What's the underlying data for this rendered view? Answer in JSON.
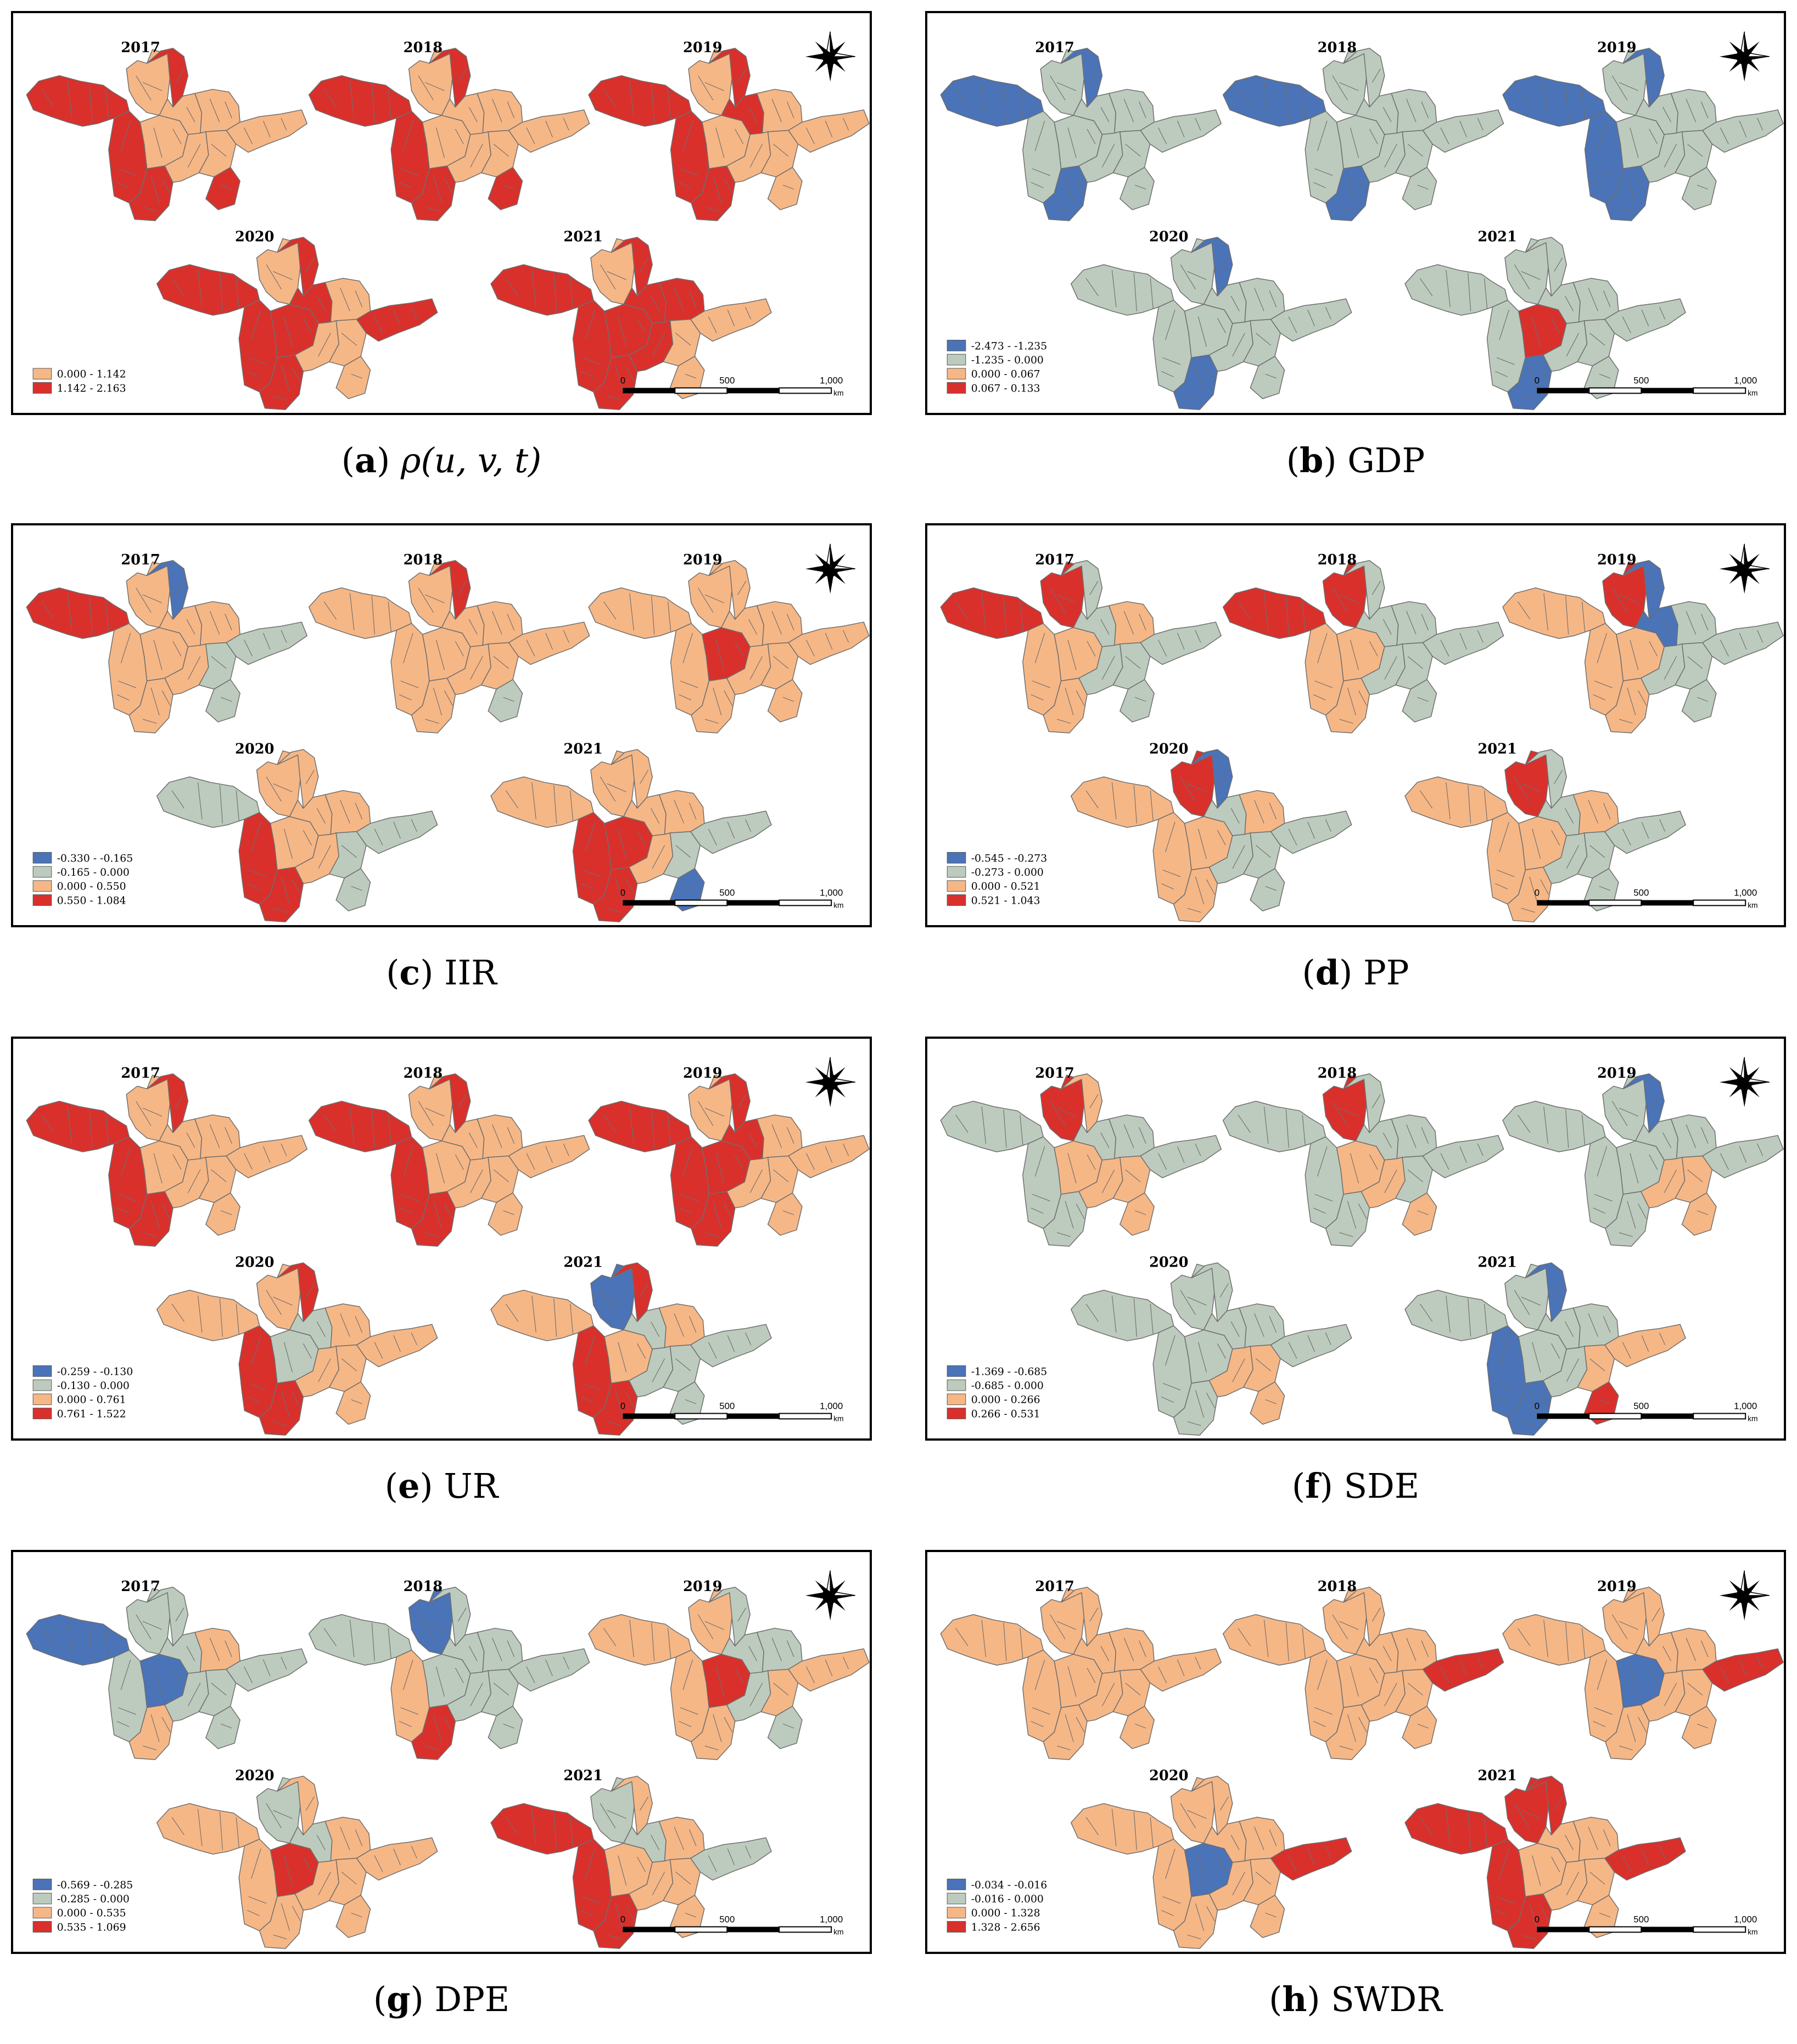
{
  "colors": {
    "blue": "#4a73b8",
    "grey": "#bccbbd",
    "orange": "#f6b786",
    "red": "#d9302c",
    "border": "#6e6e6e"
  },
  "scalebar": {
    "labels": [
      "0",
      "500",
      "1,000"
    ],
    "unit": "km"
  },
  "panels": [
    {
      "letter": "a",
      "label": "ρ(u, v, t)",
      "legend": [
        {
          "color": "orange",
          "text": "0.000 - 1.142"
        },
        {
          "color": "red",
          "text": "1.142 - 2.163"
        }
      ],
      "maps": [
        {
          "year": "2017",
          "regions": [
            "red",
            "orange",
            "red",
            "red",
            "orange",
            "orange",
            "orange",
            "red",
            "orange",
            "orange",
            "red",
            "orange"
          ]
        },
        {
          "year": "2018",
          "regions": [
            "red",
            "orange",
            "red",
            "red",
            "orange",
            "orange",
            "orange",
            "red",
            "orange",
            "orange",
            "red",
            "orange"
          ]
        },
        {
          "year": "2019",
          "regions": [
            "red",
            "orange",
            "red",
            "red",
            "orange",
            "red",
            "orange",
            "red",
            "orange",
            "orange",
            "orange",
            "orange"
          ]
        },
        {
          "year": "2020",
          "regions": [
            "red",
            "orange",
            "red",
            "red",
            "red",
            "red",
            "orange",
            "red",
            "orange",
            "orange",
            "orange",
            "red"
          ]
        },
        {
          "year": "2021",
          "regions": [
            "red",
            "orange",
            "red",
            "red",
            "red",
            "red",
            "red",
            "red",
            "red",
            "orange",
            "orange",
            "orange"
          ]
        }
      ]
    },
    {
      "letter": "b",
      "label": "GDP",
      "legend": [
        {
          "color": "blue",
          "text": "-2.473 - -1.235"
        },
        {
          "color": "grey",
          "text": "-1.235 - 0.000"
        },
        {
          "color": "orange",
          "text": "0.000 - 0.067"
        },
        {
          "color": "red",
          "text": "0.067 - 0.133"
        }
      ],
      "maps": [
        {
          "year": "2017",
          "regions": [
            "blue",
            "grey",
            "blue",
            "grey",
            "grey",
            "grey",
            "grey",
            "blue",
            "grey",
            "grey",
            "grey",
            "grey"
          ]
        },
        {
          "year": "2018",
          "regions": [
            "blue",
            "grey",
            "grey",
            "grey",
            "grey",
            "grey",
            "grey",
            "blue",
            "grey",
            "grey",
            "grey",
            "grey"
          ]
        },
        {
          "year": "2019",
          "regions": [
            "blue",
            "grey",
            "blue",
            "blue",
            "grey",
            "grey",
            "grey",
            "blue",
            "grey",
            "grey",
            "grey",
            "grey"
          ]
        },
        {
          "year": "2020",
          "regions": [
            "grey",
            "grey",
            "blue",
            "grey",
            "grey",
            "grey",
            "grey",
            "blue",
            "grey",
            "grey",
            "grey",
            "grey"
          ]
        },
        {
          "year": "2021",
          "regions": [
            "grey",
            "grey",
            "grey",
            "grey",
            "red",
            "grey",
            "grey",
            "blue",
            "grey",
            "grey",
            "grey",
            "grey"
          ]
        }
      ]
    },
    {
      "letter": "c",
      "label": "IIR",
      "legend": [
        {
          "color": "blue",
          "text": "-0.330 - -0.165"
        },
        {
          "color": "grey",
          "text": "-0.165 - 0.000"
        },
        {
          "color": "orange",
          "text": "0.000 - 0.550"
        },
        {
          "color": "red",
          "text": "0.550 - 1.084"
        }
      ],
      "maps": [
        {
          "year": "2017",
          "regions": [
            "red",
            "orange",
            "blue",
            "orange",
            "orange",
            "orange",
            "orange",
            "orange",
            "orange",
            "grey",
            "grey",
            "grey"
          ]
        },
        {
          "year": "2018",
          "regions": [
            "orange",
            "orange",
            "red",
            "orange",
            "orange",
            "orange",
            "orange",
            "orange",
            "orange",
            "orange",
            "grey",
            "orange"
          ]
        },
        {
          "year": "2019",
          "regions": [
            "orange",
            "orange",
            "orange",
            "orange",
            "red",
            "orange",
            "orange",
            "orange",
            "orange",
            "orange",
            "orange",
            "orange"
          ]
        },
        {
          "year": "2020",
          "regions": [
            "grey",
            "orange",
            "orange",
            "red",
            "orange",
            "orange",
            "orange",
            "red",
            "orange",
            "grey",
            "grey",
            "grey"
          ]
        },
        {
          "year": "2021",
          "regions": [
            "orange",
            "orange",
            "orange",
            "red",
            "red",
            "orange",
            "orange",
            "red",
            "orange",
            "grey",
            "blue",
            "grey"
          ]
        }
      ]
    },
    {
      "letter": "d",
      "label": "PP",
      "legend": [
        {
          "color": "blue",
          "text": "-0.545 - -0.273"
        },
        {
          "color": "grey",
          "text": "-0.273 - 0.000"
        },
        {
          "color": "orange",
          "text": "0.000 - 0.521"
        },
        {
          "color": "red",
          "text": "0.521 - 1.043"
        }
      ],
      "maps": [
        {
          "year": "2017",
          "regions": [
            "red",
            "red",
            "grey",
            "orange",
            "orange",
            "grey",
            "orange",
            "orange",
            "grey",
            "grey",
            "grey",
            "grey"
          ]
        },
        {
          "year": "2018",
          "regions": [
            "red",
            "red",
            "grey",
            "orange",
            "orange",
            "grey",
            "grey",
            "orange",
            "grey",
            "grey",
            "grey",
            "grey"
          ]
        },
        {
          "year": "2019",
          "regions": [
            "orange",
            "red",
            "blue",
            "orange",
            "orange",
            "blue",
            "grey",
            "orange",
            "grey",
            "grey",
            "grey",
            "grey"
          ]
        },
        {
          "year": "2020",
          "regions": [
            "orange",
            "red",
            "blue",
            "orange",
            "orange",
            "grey",
            "orange",
            "orange",
            "grey",
            "grey",
            "grey",
            "grey"
          ]
        },
        {
          "year": "2021",
          "regions": [
            "orange",
            "red",
            "grey",
            "orange",
            "orange",
            "grey",
            "orange",
            "orange",
            "grey",
            "grey",
            "grey",
            "grey"
          ]
        }
      ]
    },
    {
      "letter": "e",
      "label": "UR",
      "legend": [
        {
          "color": "blue",
          "text": "-0.259 - -0.130"
        },
        {
          "color": "grey",
          "text": "-0.130 - 0.000"
        },
        {
          "color": "orange",
          "text": "0.000 - 0.761"
        },
        {
          "color": "red",
          "text": "0.761 - 1.522"
        }
      ],
      "maps": [
        {
          "year": "2017",
          "regions": [
            "red",
            "orange",
            "red",
            "red",
            "orange",
            "orange",
            "orange",
            "red",
            "orange",
            "orange",
            "orange",
            "orange"
          ]
        },
        {
          "year": "2018",
          "regions": [
            "red",
            "orange",
            "red",
            "red",
            "orange",
            "orange",
            "orange",
            "red",
            "orange",
            "orange",
            "orange",
            "orange"
          ]
        },
        {
          "year": "2019",
          "regions": [
            "red",
            "orange",
            "red",
            "red",
            "red",
            "red",
            "orange",
            "red",
            "orange",
            "orange",
            "orange",
            "orange"
          ]
        },
        {
          "year": "2020",
          "regions": [
            "orange",
            "orange",
            "red",
            "red",
            "grey",
            "grey",
            "orange",
            "red",
            "orange",
            "orange",
            "orange",
            "orange"
          ]
        },
        {
          "year": "2021",
          "regions": [
            "orange",
            "blue",
            "red",
            "red",
            "orange",
            "grey",
            "orange",
            "red",
            "grey",
            "grey",
            "grey",
            "grey"
          ]
        }
      ]
    },
    {
      "letter": "f",
      "label": "SDE",
      "legend": [
        {
          "color": "blue",
          "text": "-1.369 - -0.685"
        },
        {
          "color": "grey",
          "text": "-0.685 - 0.000"
        },
        {
          "color": "orange",
          "text": "0.000 - 0.266"
        },
        {
          "color": "red",
          "text": "0.266 - 0.531"
        }
      ],
      "maps": [
        {
          "year": "2017",
          "regions": [
            "grey",
            "red",
            "orange",
            "grey",
            "orange",
            "grey",
            "grey",
            "grey",
            "orange",
            "orange",
            "orange",
            "grey"
          ]
        },
        {
          "year": "2018",
          "regions": [
            "grey",
            "red",
            "grey",
            "grey",
            "orange",
            "grey",
            "grey",
            "grey",
            "orange",
            "grey",
            "orange",
            "grey"
          ]
        },
        {
          "year": "2019",
          "regions": [
            "grey",
            "grey",
            "blue",
            "grey",
            "grey",
            "grey",
            "grey",
            "grey",
            "orange",
            "orange",
            "orange",
            "grey"
          ]
        },
        {
          "year": "2020",
          "regions": [
            "grey",
            "grey",
            "grey",
            "grey",
            "grey",
            "grey",
            "grey",
            "grey",
            "orange",
            "orange",
            "orange",
            "grey"
          ]
        },
        {
          "year": "2021",
          "regions": [
            "grey",
            "grey",
            "blue",
            "blue",
            "grey",
            "grey",
            "grey",
            "blue",
            "grey",
            "orange",
            "red",
            "orange"
          ]
        }
      ]
    },
    {
      "letter": "g",
      "label": "DPE",
      "legend": [
        {
          "color": "blue",
          "text": "-0.569 - -0.285"
        },
        {
          "color": "grey",
          "text": "-0.285 - 0.000"
        },
        {
          "color": "orange",
          "text": "0.000 - 0.535"
        },
        {
          "color": "red",
          "text": "0.535 - 1.069"
        }
      ],
      "maps": [
        {
          "year": "2017",
          "regions": [
            "blue",
            "grey",
            "grey",
            "grey",
            "blue",
            "grey",
            "orange",
            "orange",
            "grey",
            "grey",
            "grey",
            "grey"
          ]
        },
        {
          "year": "2018",
          "regions": [
            "grey",
            "blue",
            "grey",
            "orange",
            "grey",
            "grey",
            "grey",
            "red",
            "grey",
            "grey",
            "grey",
            "grey"
          ]
        },
        {
          "year": "2019",
          "regions": [
            "orange",
            "orange",
            "grey",
            "orange",
            "red",
            "grey",
            "grey",
            "orange",
            "grey",
            "orange",
            "grey",
            "orange"
          ]
        },
        {
          "year": "2020",
          "regions": [
            "orange",
            "grey",
            "orange",
            "orange",
            "red",
            "grey",
            "orange",
            "orange",
            "orange",
            "orange",
            "orange",
            "orange"
          ]
        },
        {
          "year": "2021",
          "regions": [
            "red",
            "grey",
            "orange",
            "red",
            "orange",
            "grey",
            "orange",
            "red",
            "orange",
            "orange",
            "orange",
            "grey"
          ]
        }
      ]
    },
    {
      "letter": "h",
      "label": "SWDR",
      "legend": [
        {
          "color": "blue",
          "text": "-0.034 - -0.016"
        },
        {
          "color": "grey",
          "text": "-0.016 - 0.000"
        },
        {
          "color": "orange",
          "text": "0.000 - 1.328"
        },
        {
          "color": "red",
          "text": "1.328 - 2.656"
        }
      ],
      "maps": [
        {
          "year": "2017",
          "regions": [
            "orange",
            "orange",
            "orange",
            "orange",
            "orange",
            "orange",
            "orange",
            "orange",
            "orange",
            "orange",
            "orange",
            "orange"
          ]
        },
        {
          "year": "2018",
          "regions": [
            "orange",
            "orange",
            "orange",
            "orange",
            "orange",
            "orange",
            "orange",
            "orange",
            "orange",
            "orange",
            "orange",
            "red"
          ]
        },
        {
          "year": "2019",
          "regions": [
            "orange",
            "orange",
            "orange",
            "orange",
            "blue",
            "orange",
            "orange",
            "orange",
            "orange",
            "orange",
            "orange",
            "red"
          ]
        },
        {
          "year": "2020",
          "regions": [
            "orange",
            "orange",
            "orange",
            "orange",
            "blue",
            "orange",
            "orange",
            "orange",
            "orange",
            "orange",
            "orange",
            "red"
          ]
        },
        {
          "year": "2021",
          "regions": [
            "red",
            "red",
            "red",
            "red",
            "orange",
            "orange",
            "orange",
            "red",
            "orange",
            "orange",
            "orange",
            "red"
          ]
        }
      ]
    }
  ]
}
